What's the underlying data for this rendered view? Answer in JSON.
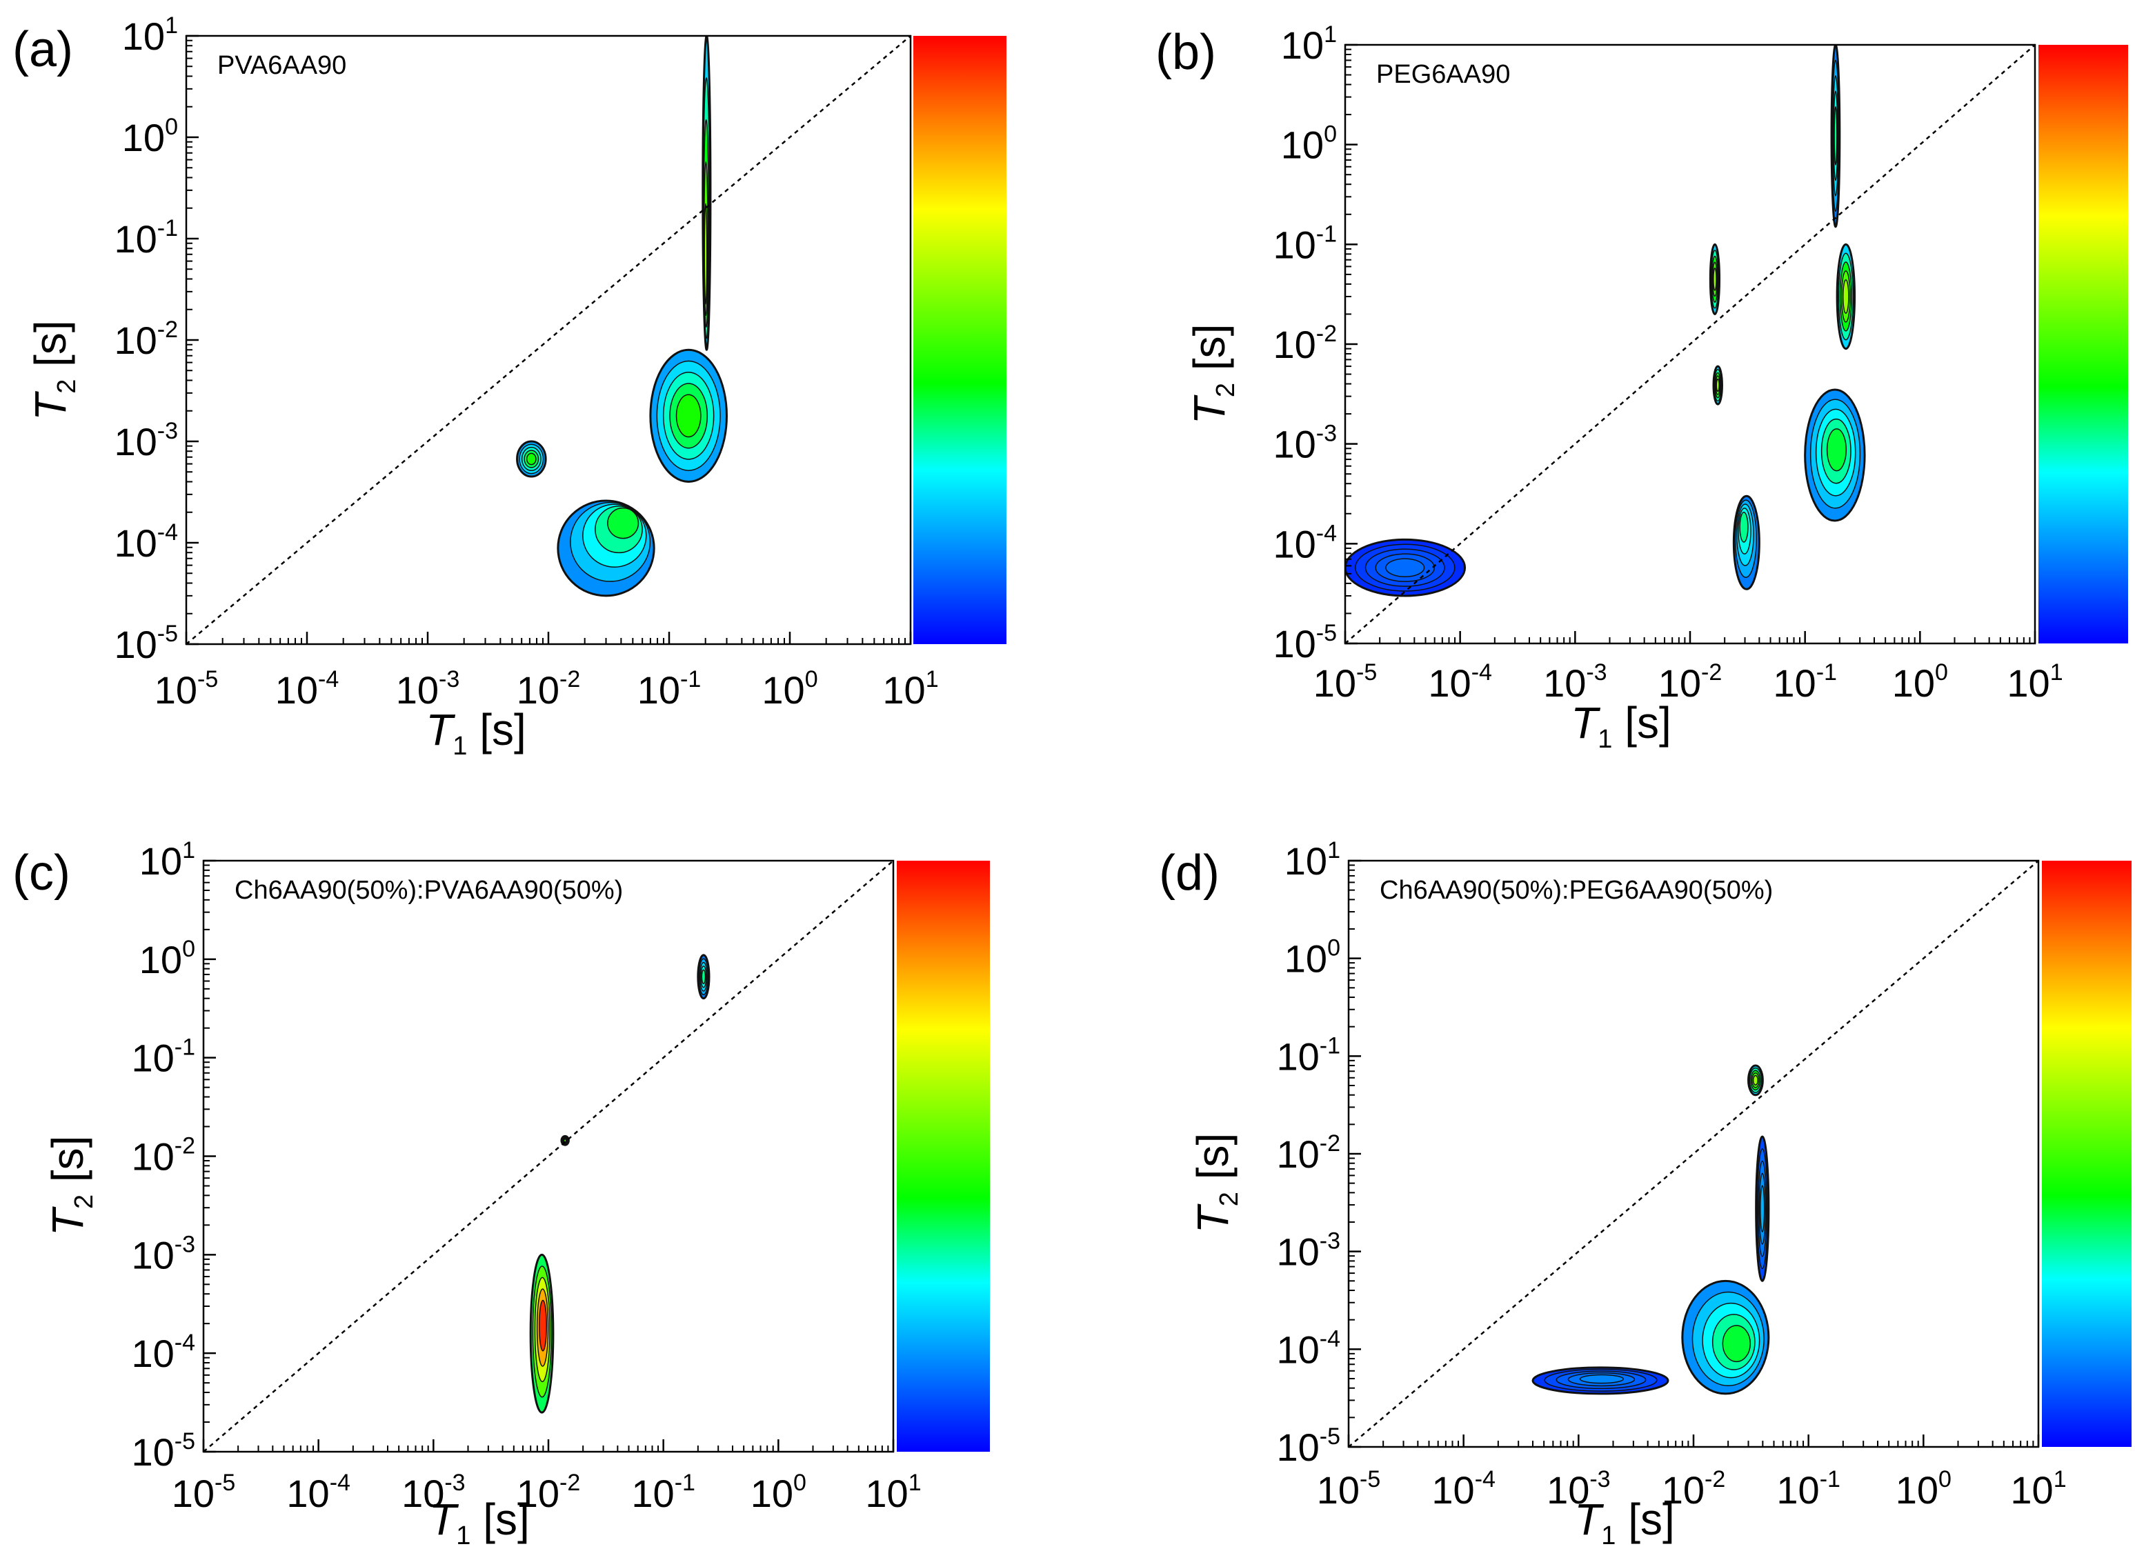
{
  "figure": {
    "x_axis_title": "T",
    "x_axis_subscript": "1",
    "x_axis_unit": "[s]",
    "y_axis_title": "T",
    "y_axis_subscript": "2",
    "y_axis_unit": "[s]",
    "tick_base": "10",
    "tick_exponents": [
      "-5",
      "-4",
      "-3",
      "-2",
      "-1",
      "0",
      "1"
    ]
  },
  "colorbar": {
    "stops": [
      "#0000ff",
      "#0080ff",
      "#00ffff",
      "#00ff00",
      "#80ff00",
      "#ffff00",
      "#ff8000",
      "#ff0000"
    ]
  },
  "chart_data": [
    {
      "type": "heatmap",
      "panel_label": "(a)",
      "sample": "PVA6AA90",
      "xlabel": "T1 [s]",
      "ylabel": "T2 [s]",
      "xscale": "log",
      "yscale": "log",
      "xlim": [
        1e-05,
        10
      ],
      "ylim": [
        1e-05,
        10
      ],
      "diagonal": "T1 = T2 (dashed)",
      "regions": [
        {
          "T1": [
            0.012,
            0.075
          ],
          "T2": [
            3e-05,
            0.00026
          ],
          "peak": {
            "T1": 0.045,
            "T2": 0.00018
          },
          "intensity": 0.4
        },
        {
          "T1": [
            0.0055,
            0.0095
          ],
          "T2": [
            0.00045,
            0.001
          ],
          "intensity": 0.45
        },
        {
          "T1": [
            0.07,
            0.3
          ],
          "T2": [
            0.0004,
            0.008
          ],
          "intensity": 0.45
        },
        {
          "T1": [
            0.19,
            0.22
          ],
          "T2": [
            0.008,
            10
          ],
          "peak": {
            "T1": 0.2,
            "T2": 0.05
          },
          "intensity": 0.6
        }
      ]
    },
    {
      "type": "heatmap",
      "panel_label": "(b)",
      "sample": "PEG6AA90",
      "xlabel": "T1 [s]",
      "ylabel": "T2 [s]",
      "xscale": "log",
      "yscale": "log",
      "xlim": [
        1e-05,
        10
      ],
      "ylim": [
        1e-05,
        10
      ],
      "diagonal": "T1 = T2 (dashed)",
      "regions": [
        {
          "T1": [
            1e-05,
            0.00011
          ],
          "T2": [
            3e-05,
            0.00011
          ],
          "intensity": 0.12
        },
        {
          "T1": [
            0.024,
            0.04
          ],
          "T2": [
            3.5e-05,
            0.0003
          ],
          "peak": {
            "T1": 0.029,
            "T2": 0.00016
          },
          "intensity": 0.35
        },
        {
          "T1": [
            0.1,
            0.33
          ],
          "T2": [
            0.00017,
            0.0035
          ],
          "peak": {
            "T1": 0.19,
            "T2": 0.0009
          },
          "intensity": 0.4
        },
        {
          "T1": [
            0.015,
            0.018
          ],
          "T2": [
            0.02,
            0.1
          ],
          "intensity": 0.6
        },
        {
          "T1": [
            0.016,
            0.019
          ],
          "T2": [
            0.0025,
            0.006
          ],
          "intensity": 0.6
        },
        {
          "T1": [
            0.17,
            0.2
          ],
          "T2": [
            0.15,
            10
          ],
          "intensity": 0.35
        },
        {
          "T1": [
            0.19,
            0.27
          ],
          "T2": [
            0.009,
            0.1
          ],
          "intensity": 0.6
        }
      ]
    },
    {
      "type": "heatmap",
      "panel_label": "(c)",
      "sample": "Ch6AA90(50%):PVA6AA90(50%)",
      "xlabel": "T1 [s]",
      "ylabel": "T2 [s]",
      "xscale": "log",
      "yscale": "log",
      "xlim": [
        1e-05,
        10
      ],
      "ylim": [
        1e-05,
        10
      ],
      "diagonal": "T1 = T2 (dashed)",
      "regions": [
        {
          "T1": [
            0.007,
            0.011
          ],
          "T2": [
            2.5e-05,
            0.001
          ],
          "peak": {
            "T1": 0.009,
            "T2": 0.0002
          },
          "intensity": 0.95
        },
        {
          "T1": [
            0.2,
            0.25
          ],
          "T2": [
            0.4,
            1.1
          ],
          "intensity": 0.35
        },
        {
          "T1": [
            0.013,
            0.015
          ],
          "T2": [
            0.013,
            0.016
          ],
          "intensity": 0.5
        }
      ]
    },
    {
      "type": "heatmap",
      "panel_label": "(d)",
      "sample": "Ch6AA90(50%):PEG6AA90(50%)",
      "xlabel": "T1 [s]",
      "ylabel": "T2 [s]",
      "xscale": "log",
      "yscale": "log",
      "xlim": [
        1e-05,
        10
      ],
      "ylim": [
        1e-05,
        10
      ],
      "diagonal": "T1 = T2 (dashed)",
      "regions": [
        {
          "T1": [
            0.0004,
            0.006
          ],
          "T2": [
            3.5e-05,
            6.5e-05
          ],
          "peak": {
            "T1": 0.0016,
            "T2": 5e-05
          },
          "intensity": 0.15
        },
        {
          "T1": [
            0.008,
            0.045
          ],
          "T2": [
            3.5e-05,
            0.0005
          ],
          "peak": {
            "T1": 0.025,
            "T2": 0.00011
          },
          "intensity": 0.4
        },
        {
          "T1": [
            0.03,
            0.04
          ],
          "T2": [
            0.04,
            0.08
          ],
          "intensity": 0.6
        },
        {
          "T1": [
            0.035,
            0.045
          ],
          "T2": [
            0.0005,
            0.015
          ],
          "intensity": 0.2
        }
      ]
    }
  ]
}
